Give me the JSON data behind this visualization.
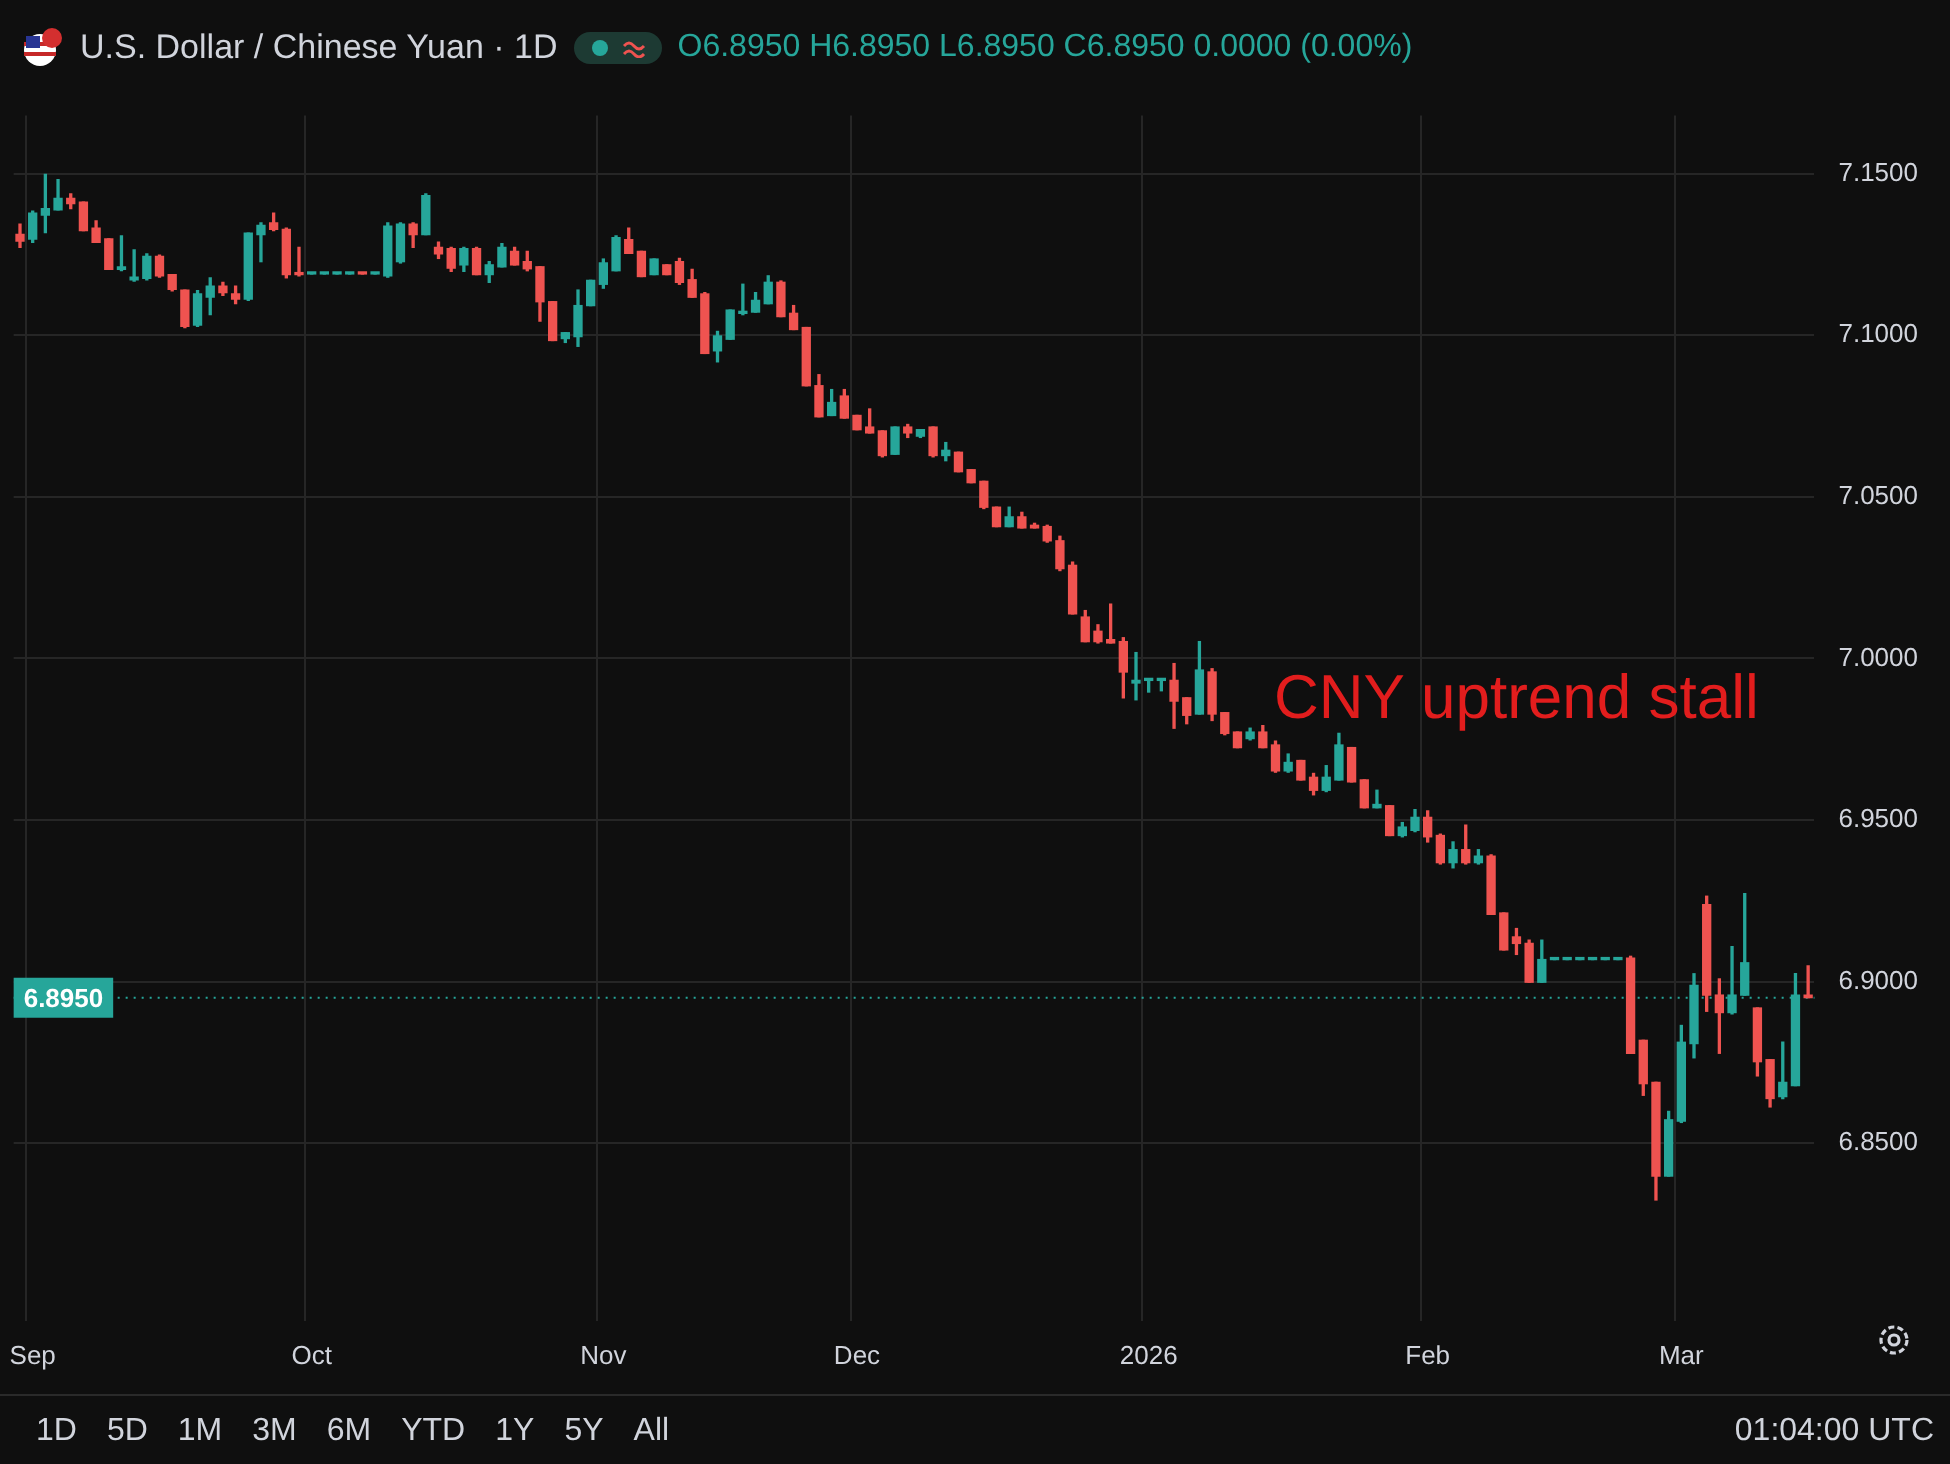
{
  "chart_data": {
    "type": "candlestick",
    "title": "U.S. Dollar / Chinese Yuan · 1D",
    "subtitle": "O6.8950 H6.8950 L6.8950 C6.8950 0.0000 (0.00%)",
    "categories": [
      null,
      "Sep",
      null,
      null,
      null,
      null,
      null,
      null,
      null,
      null,
      null,
      null,
      null,
      null,
      null,
      null,
      null,
      null,
      null,
      null,
      null,
      null,
      null,
      "Oct",
      null,
      null,
      null,
      null,
      null,
      null,
      null,
      null,
      null,
      null,
      null,
      null,
      null,
      null,
      null,
      null,
      null,
      null,
      null,
      null,
      null,
      null,
      "Nov",
      null,
      null,
      null,
      null,
      null,
      null,
      null,
      null,
      null,
      null,
      null,
      null,
      null,
      null,
      null,
      null,
      null,
      null,
      null,
      "Dec",
      null,
      null,
      null,
      null,
      null,
      null,
      null,
      null,
      null,
      null,
      null,
      null,
      null,
      null,
      null,
      null,
      null,
      null,
      null,
      null,
      null,
      null,
      "2026",
      null,
      null,
      null,
      null,
      null,
      null,
      null,
      null,
      null,
      null,
      null,
      null,
      null,
      null,
      null,
      null,
      null,
      null,
      null,
      null,
      null,
      "Feb",
      null,
      null,
      null,
      null,
      null,
      null,
      null,
      null,
      null,
      null,
      null,
      null,
      null,
      null,
      null,
      null,
      null,
      null,
      null,
      "Mar",
      null,
      null,
      null,
      null,
      null,
      null,
      null,
      null,
      null,
      null
    ],
    "ohlc": [
      [
        7.1312,
        7.1344,
        7.1272,
        7.1292
      ],
      [
        7.1298,
        7.1384,
        7.1288,
        7.1378
      ],
      [
        7.1372,
        7.1498,
        7.1318,
        7.1392
      ],
      [
        7.1388,
        7.1482,
        7.1388,
        7.1424
      ],
      [
        7.1424,
        7.1438,
        7.1392,
        7.1408
      ],
      [
        7.1412,
        7.1412,
        7.1324,
        7.1324
      ],
      [
        7.1332,
        7.1354,
        7.1288,
        7.1288
      ],
      [
        7.1298,
        7.1298,
        7.1204,
        7.1204
      ],
      [
        7.1204,
        7.1308,
        7.12,
        7.1212
      ],
      [
        7.1172,
        7.1264,
        7.1168,
        7.118
      ],
      [
        7.1176,
        7.1252,
        7.1172,
        7.1244
      ],
      [
        7.1244,
        7.1248,
        7.118,
        7.1184
      ],
      [
        7.1188,
        7.1188,
        7.1138,
        7.1142
      ],
      [
        7.114,
        7.114,
        7.1024,
        7.1028
      ],
      [
        7.1032,
        7.1138,
        7.1028,
        7.1128
      ],
      [
        7.1118,
        7.1178,
        7.1064,
        7.1152
      ],
      [
        7.1152,
        7.1164,
        7.1124,
        7.1132
      ],
      [
        7.1128,
        7.1152,
        7.1098,
        7.1112
      ],
      [
        7.1112,
        7.1316,
        7.1108,
        7.1316
      ],
      [
        7.1312,
        7.1348,
        7.1228,
        7.134
      ],
      [
        7.1348,
        7.1378,
        7.1324,
        7.1328
      ],
      [
        7.1328,
        7.1332,
        7.1178,
        7.1188
      ],
      [
        7.1192,
        7.1272,
        7.1184,
        7.1188
      ],
      [
        7.119,
        7.119,
        7.119,
        7.119
      ],
      [
        7.119,
        7.119,
        7.119,
        7.119
      ],
      [
        7.119,
        7.119,
        7.119,
        7.119
      ],
      [
        7.119,
        7.119,
        7.119,
        7.119
      ],
      [
        7.119,
        7.119,
        7.119,
        7.119
      ],
      [
        7.119,
        7.119,
        7.119,
        7.119
      ],
      [
        7.1184,
        7.1348,
        7.118,
        7.1338
      ],
      [
        7.1228,
        7.1348,
        7.1224,
        7.1344
      ],
      [
        7.1344,
        7.1348,
        7.1272,
        7.1312
      ],
      [
        7.1312,
        7.1438,
        7.1312,
        7.1432
      ],
      [
        7.1272,
        7.1288,
        7.1238,
        7.1252
      ],
      [
        7.1268,
        7.1272,
        7.1198,
        7.1208
      ],
      [
        7.1218,
        7.1272,
        7.1198,
        7.1268
      ],
      [
        7.1268,
        7.1272,
        7.1188,
        7.1188
      ],
      [
        7.1188,
        7.1228,
        7.1164,
        7.1218
      ],
      [
        7.1212,
        7.1284,
        7.1212,
        7.1272
      ],
      [
        7.126,
        7.1272,
        7.1218,
        7.1218
      ],
      [
        7.1228,
        7.126,
        7.12,
        7.1206
      ],
      [
        7.1212,
        7.1212,
        7.1044,
        7.1104
      ],
      [
        7.1104,
        7.1104,
        7.0984,
        7.0984
      ],
      [
        7.099,
        7.1008,
        7.0978,
        7.1008
      ],
      [
        7.0996,
        7.114,
        7.0966,
        7.1092
      ],
      [
        7.1092,
        7.117,
        7.1092,
        7.117
      ],
      [
        7.1158,
        7.1236,
        7.1146,
        7.1224
      ],
      [
        7.12,
        7.1308,
        7.12,
        7.1302
      ],
      [
        7.1296,
        7.1332,
        7.1254,
        7.1254
      ],
      [
        7.126,
        7.126,
        7.1182,
        7.1182
      ],
      [
        7.1188,
        7.1236,
        7.1188,
        7.1236
      ],
      [
        7.1218,
        7.1218,
        7.1188,
        7.1188
      ],
      [
        7.1228,
        7.1238,
        7.1158,
        7.1164
      ],
      [
        7.1172,
        7.1204,
        7.1118,
        7.1118
      ],
      [
        7.1128,
        7.1132,
        7.0944,
        7.0944
      ],
      [
        7.0952,
        7.1012,
        7.0918,
        7.0998
      ],
      [
        7.0988,
        7.1078,
        7.0988,
        7.1078
      ],
      [
        7.1068,
        7.1158,
        7.1064,
        7.1074
      ],
      [
        7.1072,
        7.1132,
        7.1072,
        7.1108
      ],
      [
        7.1098,
        7.1184,
        7.1098,
        7.1164
      ],
      [
        7.1164,
        7.1168,
        7.1058,
        7.1058
      ],
      [
        7.1068,
        7.1092,
        7.1018,
        7.1018
      ],
      [
        7.1024,
        7.1024,
        7.0844,
        7.0844
      ],
      [
        7.0844,
        7.0878,
        7.0748,
        7.0748
      ],
      [
        7.0752,
        7.0832,
        7.0752,
        7.0792
      ],
      [
        7.0812,
        7.0832,
        7.0744,
        7.0744
      ],
      [
        7.0752,
        7.0752,
        7.0708,
        7.0708
      ],
      [
        7.0716,
        7.0772,
        7.0698,
        7.0698
      ],
      [
        7.0704,
        7.0704,
        7.0624,
        7.0628
      ],
      [
        7.0632,
        7.0716,
        7.0632,
        7.0716
      ],
      [
        7.0716,
        7.0724,
        7.0684,
        7.0698
      ],
      [
        7.0688,
        7.0708,
        7.0684,
        7.0708
      ],
      [
        7.0716,
        7.0716,
        7.0624,
        7.0628
      ],
      [
        7.0628,
        7.0668,
        7.0612,
        7.0644
      ],
      [
        7.0638,
        7.0638,
        7.0578,
        7.0578
      ],
      [
        7.0584,
        7.0584,
        7.0544,
        7.0544
      ],
      [
        7.0548,
        7.0548,
        7.0464,
        7.0468
      ],
      [
        7.0468,
        7.0468,
        7.0408,
        7.0408
      ],
      [
        7.0408,
        7.0468,
        7.0408,
        7.0438
      ],
      [
        7.0438,
        7.0452,
        7.0404,
        7.0404
      ],
      [
        7.0412,
        7.0418,
        7.0404,
        7.0404
      ],
      [
        7.0408,
        7.0412,
        7.036,
        7.0364
      ],
      [
        7.0364,
        7.0378,
        7.0272,
        7.0278
      ],
      [
        7.0288,
        7.0298,
        7.0138,
        7.0138
      ],
      [
        7.0128,
        7.0148,
        7.0052,
        7.0052
      ],
      [
        7.0084,
        7.0104,
        7.0048,
        7.0052
      ],
      [
        7.0058,
        7.0168,
        7.0048,
        7.0048
      ],
      [
        7.0052,
        7.0064,
        6.9878,
        6.9958
      ],
      [
        6.9924,
        7.0018,
        6.9872,
        6.9932
      ],
      [
        6.9932,
        6.9932,
        6.9896,
        6.9932
      ],
      [
        6.9932,
        6.9932,
        6.99,
        6.9932
      ],
      [
        6.9932,
        6.9984,
        6.9784,
        6.9868
      ],
      [
        6.9878,
        6.9878,
        6.9798,
        6.9824
      ],
      [
        6.9828,
        7.0052,
        6.9828,
        6.9964
      ],
      [
        6.9958,
        6.9968,
        6.9808,
        6.9828
      ],
      [
        6.9832,
        6.9832,
        6.9764,
        6.9768
      ],
      [
        6.9772,
        6.9772,
        6.9724,
        6.9724
      ],
      [
        6.9752,
        6.9784,
        6.9748,
        6.9772
      ],
      [
        6.9772,
        6.9792,
        6.9724,
        6.9724
      ],
      [
        6.9732,
        6.9744,
        6.9648,
        6.9652
      ],
      [
        6.9652,
        6.9704,
        6.9648,
        6.9678
      ],
      [
        6.9684,
        6.9684,
        6.9624,
        6.9624
      ],
      [
        6.9632,
        6.9644,
        6.9578,
        6.9592
      ],
      [
        6.9592,
        6.9668,
        6.9588,
        6.9632
      ],
      [
        6.9624,
        6.9768,
        6.9624,
        6.9732
      ],
      [
        6.9724,
        6.9724,
        6.9618,
        6.9618
      ],
      [
        6.9624,
        6.9624,
        6.9538,
        6.9538
      ],
      [
        6.9538,
        6.9592,
        6.9538,
        6.9548
      ],
      [
        6.9544,
        6.9544,
        6.9452,
        6.9452
      ],
      [
        6.9452,
        6.9492,
        6.9448,
        6.9478
      ],
      [
        6.9468,
        6.9532,
        6.9464,
        6.9508
      ],
      [
        6.9508,
        6.9528,
        6.9432,
        6.9448
      ],
      [
        6.9452,
        6.9456,
        6.9364,
        6.9368
      ],
      [
        6.9368,
        6.9432,
        6.9352,
        6.9408
      ],
      [
        6.9408,
        6.9484,
        6.9364,
        6.9368
      ],
      [
        6.9368,
        6.9408,
        6.9364,
        6.9388
      ],
      [
        6.9388,
        6.9392,
        6.9208,
        6.9208
      ],
      [
        6.9212,
        6.9212,
        6.9098,
        6.9098
      ],
      [
        6.9138,
        6.9164,
        6.9084,
        6.9118
      ],
      [
        6.9118,
        6.9128,
        6.8998,
        6.8998
      ],
      [
        6.8998,
        6.9128,
        6.8998,
        6.9068
      ],
      [
        6.9068,
        6.9068,
        6.9068,
        6.9068
      ],
      [
        6.9068,
        6.9068,
        6.9068,
        6.9068
      ],
      [
        6.9068,
        6.9068,
        6.9068,
        6.9068
      ],
      [
        6.9068,
        6.9068,
        6.9068,
        6.9068
      ],
      [
        6.9068,
        6.9068,
        6.9068,
        6.9068
      ],
      [
        6.9068,
        6.9068,
        6.9068,
        6.9068
      ],
      [
        6.9072,
        6.9078,
        6.8778,
        6.8778
      ],
      [
        6.8818,
        6.8818,
        6.8648,
        6.8684
      ],
      [
        6.8688,
        6.8688,
        6.8324,
        6.8398
      ],
      [
        6.8398,
        6.8598,
        6.8398,
        6.8572
      ],
      [
        6.8568,
        6.8864,
        6.8564,
        6.8812
      ],
      [
        6.8808,
        6.9024,
        6.8764,
        6.8988
      ],
      [
        6.9238,
        6.9264,
        6.8908,
        6.8958
      ],
      [
        6.8958,
        6.9008,
        6.8778,
        6.8904
      ],
      [
        6.8904,
        6.9108,
        6.89,
        6.8958
      ],
      [
        6.8958,
        6.9272,
        6.8958,
        6.9058
      ],
      [
        6.8918,
        6.8918,
        6.8708,
        6.8752
      ],
      [
        6.8758,
        6.8758,
        6.8612,
        6.8638
      ],
      [
        6.8644,
        6.8812,
        6.8638,
        6.8688
      ],
      [
        6.8678,
        6.9024,
        6.8678,
        6.8958
      ],
      [
        6.8958,
        6.9048,
        6.895,
        6.895
      ]
    ],
    "colors": [
      "#ef5350",
      "#26a69a",
      "#26a69a",
      "#26a69a",
      "#ef5350",
      "#ef5350",
      "#ef5350",
      "#ef5350",
      "#26a69a",
      "#26a69a",
      "#26a69a",
      "#ef5350",
      "#ef5350",
      "#ef5350",
      "#26a69a",
      "#26a69a",
      "#ef5350",
      "#ef5350",
      "#26a69a",
      "#26a69a",
      "#ef5350",
      "#ef5350",
      "#ef5350",
      "#26a69a",
      "#26a69a",
      "#26a69a",
      "#26a69a",
      "#ef5350",
      "#26a69a",
      "#26a69a",
      "#26a69a",
      "#ef5350",
      "#26a69a",
      "#ef5350",
      "#ef5350",
      "#26a69a",
      "#ef5350",
      "#26a69a",
      "#26a69a",
      "#ef5350",
      "#ef5350",
      "#ef5350",
      "#ef5350",
      "#26a69a",
      "#26a69a",
      "#26a69a",
      "#26a69a",
      "#26a69a",
      "#ef5350",
      "#ef5350",
      "#26a69a",
      "#ef5350",
      "#ef5350",
      "#ef5350",
      "#ef5350",
      "#26a69a",
      "#26a69a",
      "#26a69a",
      "#26a69a",
      "#26a69a",
      "#ef5350",
      "#ef5350",
      "#ef5350",
      "#ef5350",
      "#26a69a",
      "#ef5350",
      "#ef5350",
      "#ef5350",
      "#ef5350",
      "#26a69a",
      "#ef5350",
      "#26a69a",
      "#ef5350",
      "#26a69a",
      "#ef5350",
      "#ef5350",
      "#ef5350",
      "#ef5350",
      "#26a69a",
      "#ef5350",
      "#ef5350",
      "#ef5350",
      "#ef5350",
      "#ef5350",
      "#ef5350",
      "#ef5350",
      "#ef5350",
      "#ef5350",
      "#26a69a",
      "#26a69a",
      "#26a69a",
      "#ef5350",
      "#ef5350",
      "#26a69a",
      "#ef5350",
      "#ef5350",
      "#ef5350",
      "#26a69a",
      "#ef5350",
      "#ef5350",
      "#26a69a",
      "#ef5350",
      "#ef5350",
      "#26a69a",
      "#26a69a",
      "#ef5350",
      "#ef5350",
      "#26a69a",
      "#ef5350",
      "#26a69a",
      "#26a69a",
      "#ef5350",
      "#ef5350",
      "#26a69a",
      "#ef5350",
      "#26a69a",
      "#ef5350",
      "#ef5350",
      "#ef5350",
      "#ef5350",
      "#26a69a",
      "#26a69a",
      "#26a69a",
      "#26a69a",
      "#26a69a",
      "#26a69a",
      "#26a69a",
      "#ef5350",
      "#ef5350",
      "#ef5350",
      "#26a69a",
      "#26a69a",
      "#26a69a",
      "#ef5350",
      "#ef5350",
      "#26a69a",
      "#26a69a",
      "#ef5350",
      "#ef5350",
      "#26a69a",
      "#26a69a",
      "#ef5350"
    ],
    "ylim": [
      6.795,
      7.168
    ],
    "yticks": [
      {
        "value": 6.85,
        "label": "6.8500"
      },
      {
        "value": 6.9,
        "label": "6.9000"
      },
      {
        "value": 6.95,
        "label": "6.9500"
      },
      {
        "value": 7,
        "label": "7.0000"
      },
      {
        "value": 7.05,
        "label": "7.0500"
      },
      {
        "value": 7.1,
        "label": "7.1000"
      },
      {
        "value": 7.15,
        "label": "7.1500"
      }
    ],
    "grid": true,
    "ref_lines": [
      {
        "axis": "y",
        "value": 6.895,
        "label": "6.8950",
        "color": "#26a69a",
        "line_style": "dotted"
      }
    ],
    "annotations": [
      "CNY uptrend stall",
      "1D",
      "5D",
      "1M",
      "3M",
      "6M",
      "YTD",
      "1Y",
      "5Y",
      "All",
      "01:04:00 UTC"
    ]
  }
}
